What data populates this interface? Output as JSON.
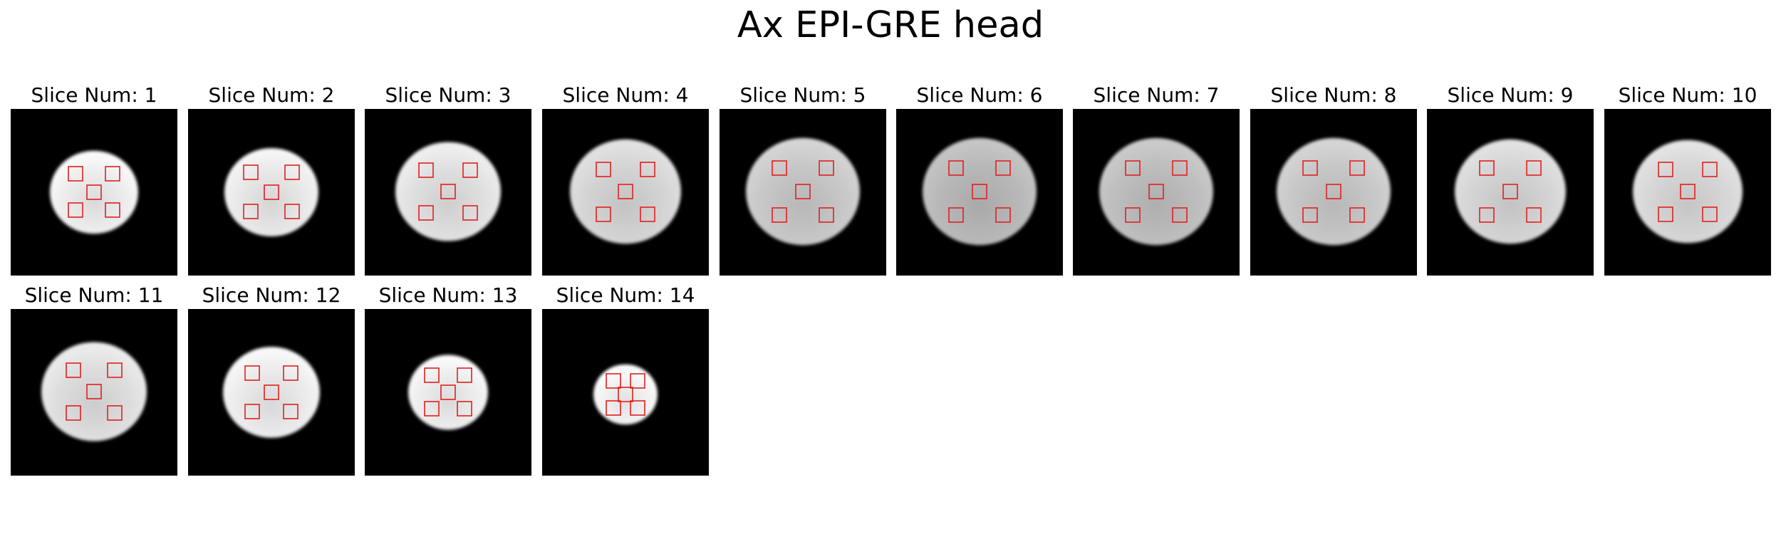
{
  "figure": {
    "title": "Ax EPI-GRE head"
  },
  "roi_color": "#e02020",
  "slices": [
    {
      "label": "Slice Num: 1",
      "brightness": 0.93
    },
    {
      "label": "Slice Num: 2",
      "brightness": 0.91
    },
    {
      "label": "Slice Num: 3",
      "brightness": 0.88
    },
    {
      "label": "Slice Num: 4",
      "brightness": 0.83
    },
    {
      "label": "Slice Num: 5",
      "brightness": 0.78
    },
    {
      "label": "Slice Num: 6",
      "brightness": 0.72
    },
    {
      "label": "Slice Num: 7",
      "brightness": 0.74
    },
    {
      "label": "Slice Num: 8",
      "brightness": 0.78
    },
    {
      "label": "Slice Num: 9",
      "brightness": 0.83
    },
    {
      "label": "Slice Num: 10",
      "brightness": 0.84
    },
    {
      "label": "Slice Num: 11",
      "brightness": 0.87
    },
    {
      "label": "Slice Num: 12",
      "brightness": 0.92
    },
    {
      "label": "Slice Num: 13",
      "brightness": 0.93
    },
    {
      "label": "Slice Num: 14",
      "brightness": 0.95
    }
  ]
}
